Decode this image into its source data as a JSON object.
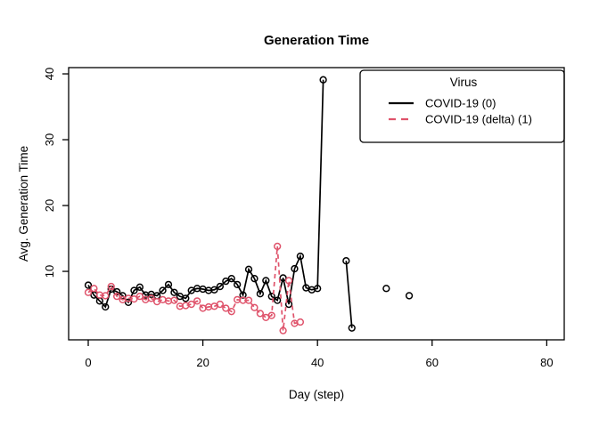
{
  "figure": {
    "background": "#ffffff",
    "frame_color": "#000000"
  },
  "chart_data": {
    "type": "line",
    "title": "Generation Time",
    "xlabel": "Day (step)",
    "ylabel": "Avg. Generation Time",
    "x_ticks": [
      0,
      20,
      40,
      60,
      80
    ],
    "y_ticks": [
      10,
      20,
      30,
      40
    ],
    "xlim": [
      -3.42,
      83.05
    ],
    "ylim": [
      -0.4,
      40.95
    ],
    "grid": false,
    "marker": "open-circle",
    "legend": {
      "title": "Virus",
      "position": "topright",
      "entries": [
        {
          "label": "COVID-19 (0)",
          "color": "#000000",
          "linestyle": "solid"
        },
        {
          "label": "COVID-19 (delta) (1)",
          "color": "#DF536B",
          "linestyle": "dashed"
        }
      ]
    },
    "series": [
      {
        "name": "COVID-19 (0)",
        "color": "#000000",
        "linestyle": "solid",
        "x": [
          0,
          1,
          2,
          3,
          4,
          5,
          6,
          7,
          8,
          9,
          10,
          11,
          12,
          13,
          14,
          15,
          16,
          17,
          18,
          19,
          20,
          21,
          22,
          23,
          24,
          25,
          26,
          27,
          28,
          29,
          30,
          31,
          32,
          33,
          34,
          35,
          36,
          37,
          38,
          39,
          40,
          41,
          42,
          43,
          44,
          45,
          46,
          47,
          48,
          49,
          50,
          51,
          52,
          53,
          54,
          55,
          56
        ],
        "y": [
          7.9,
          6.4,
          5.5,
          4.6,
          7.3,
          6.9,
          6.3,
          5.3,
          7.1,
          7.6,
          6.4,
          6.5,
          6.3,
          7.1,
          8.0,
          6.8,
          6.2,
          5.9,
          7.1,
          7.4,
          7.3,
          7.1,
          7.2,
          7.7,
          8.5,
          8.9,
          8.0,
          6.4,
          10.3,
          8.9,
          6.6,
          8.6,
          6.2,
          5.6,
          9.0,
          5.0,
          10.4,
          12.3,
          7.5,
          7.2,
          7.4,
          39.1,
          null,
          null,
          null,
          11.6,
          1.4,
          null,
          null,
          null,
          null,
          null,
          7.4,
          null,
          null,
          null,
          6.3
        ]
      },
      {
        "name": "COVID-19 (delta) (1)",
        "color": "#DF536B",
        "linestyle": "dashed",
        "x": [
          0,
          1,
          2,
          3,
          4,
          5,
          6,
          7,
          8,
          9,
          10,
          11,
          12,
          13,
          14,
          15,
          16,
          17,
          18,
          19,
          20,
          21,
          22,
          23,
          24,
          25,
          26,
          27,
          28,
          29,
          30,
          31,
          32,
          33,
          34,
          35,
          36,
          37
        ],
        "y": [
          6.8,
          7.4,
          6.4,
          6.3,
          7.7,
          6.2,
          5.7,
          5.9,
          5.8,
          6.2,
          5.7,
          5.9,
          5.4,
          5.7,
          5.5,
          5.6,
          4.7,
          4.8,
          5.0,
          5.5,
          4.4,
          4.6,
          4.7,
          5.0,
          4.4,
          3.9,
          5.7,
          5.6,
          5.6,
          4.5,
          3.6,
          3.0,
          3.3,
          13.8,
          1.0,
          8.6,
          2.1,
          2.3
        ]
      }
    ]
  }
}
